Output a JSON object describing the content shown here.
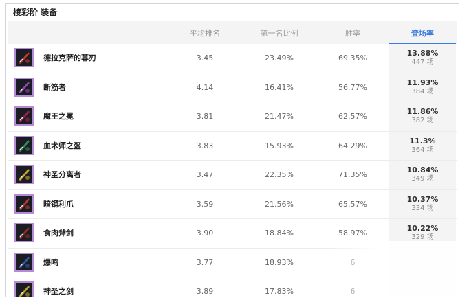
{
  "title": "棱彩阶 装备",
  "columns": {
    "avg_rank": "平均排名",
    "first_rate": "第一名比例",
    "win_rate": "胜率",
    "pick_rate": "登场率"
  },
  "colors": {
    "accent": "#3d7be0",
    "icon_border": "#b58bd6"
  },
  "rows": [
    {
      "name": "德拉克萨的暮刃",
      "avg_rank": "3.45",
      "first_rate": "23.49%",
      "win_rate": "69.35%",
      "pick_rate": "13.88%",
      "count": "447 场",
      "icon": "dark-blade-icon",
      "tint": "#c0392b"
    },
    {
      "name": "断筋者",
      "avg_rank": "4.14",
      "first_rate": "16.41%",
      "win_rate": "56.77%",
      "pick_rate": "11.93%",
      "count": "384 场",
      "icon": "hamstringer-icon",
      "tint": "#8e44ad"
    },
    {
      "name": "魔王之冕",
      "avg_rank": "3.81",
      "first_rate": "21.47%",
      "win_rate": "62.57%",
      "pick_rate": "11.86%",
      "count": "382 场",
      "icon": "demon-crown-icon",
      "tint": "#a0224a"
    },
    {
      "name": "血术师之盔",
      "avg_rank": "3.83",
      "first_rate": "15.93%",
      "win_rate": "64.29%",
      "pick_rate": "11.3%",
      "count": "364 场",
      "icon": "blood-helm-icon",
      "tint": "#2e8b57"
    },
    {
      "name": "神圣分离者",
      "avg_rank": "3.47",
      "first_rate": "22.35%",
      "win_rate": "71.35%",
      "pick_rate": "10.84%",
      "count": "349 场",
      "icon": "divine-sunderer-icon",
      "tint": "#c9a227"
    },
    {
      "name": "暗钢利爪",
      "avg_rank": "3.59",
      "first_rate": "21.56%",
      "win_rate": "65.57%",
      "pick_rate": "10.37%",
      "count": "334 场",
      "icon": "dark-claw-icon",
      "tint": "#b03a2e"
    },
    {
      "name": "食肉斧剑",
      "avg_rank": "3.90",
      "first_rate": "18.84%",
      "win_rate": "58.97%",
      "pick_rate": "10.22%",
      "count": "329 场",
      "icon": "carnivore-axe-icon",
      "tint": "#922b21"
    },
    {
      "name": "爆鸣",
      "avg_rank": "3.77",
      "first_rate": "18.93%",
      "win_rate": "6",
      "pick_rate": "",
      "count": "",
      "icon": "thunder-icon",
      "tint": "#2e5aa8"
    },
    {
      "name": "神圣之剑",
      "avg_rank": "3.89",
      "first_rate": "17.83%",
      "win_rate": "6",
      "pick_rate": "",
      "count": "",
      "icon": "holy-sword-icon",
      "tint": "#b7a124"
    }
  ]
}
